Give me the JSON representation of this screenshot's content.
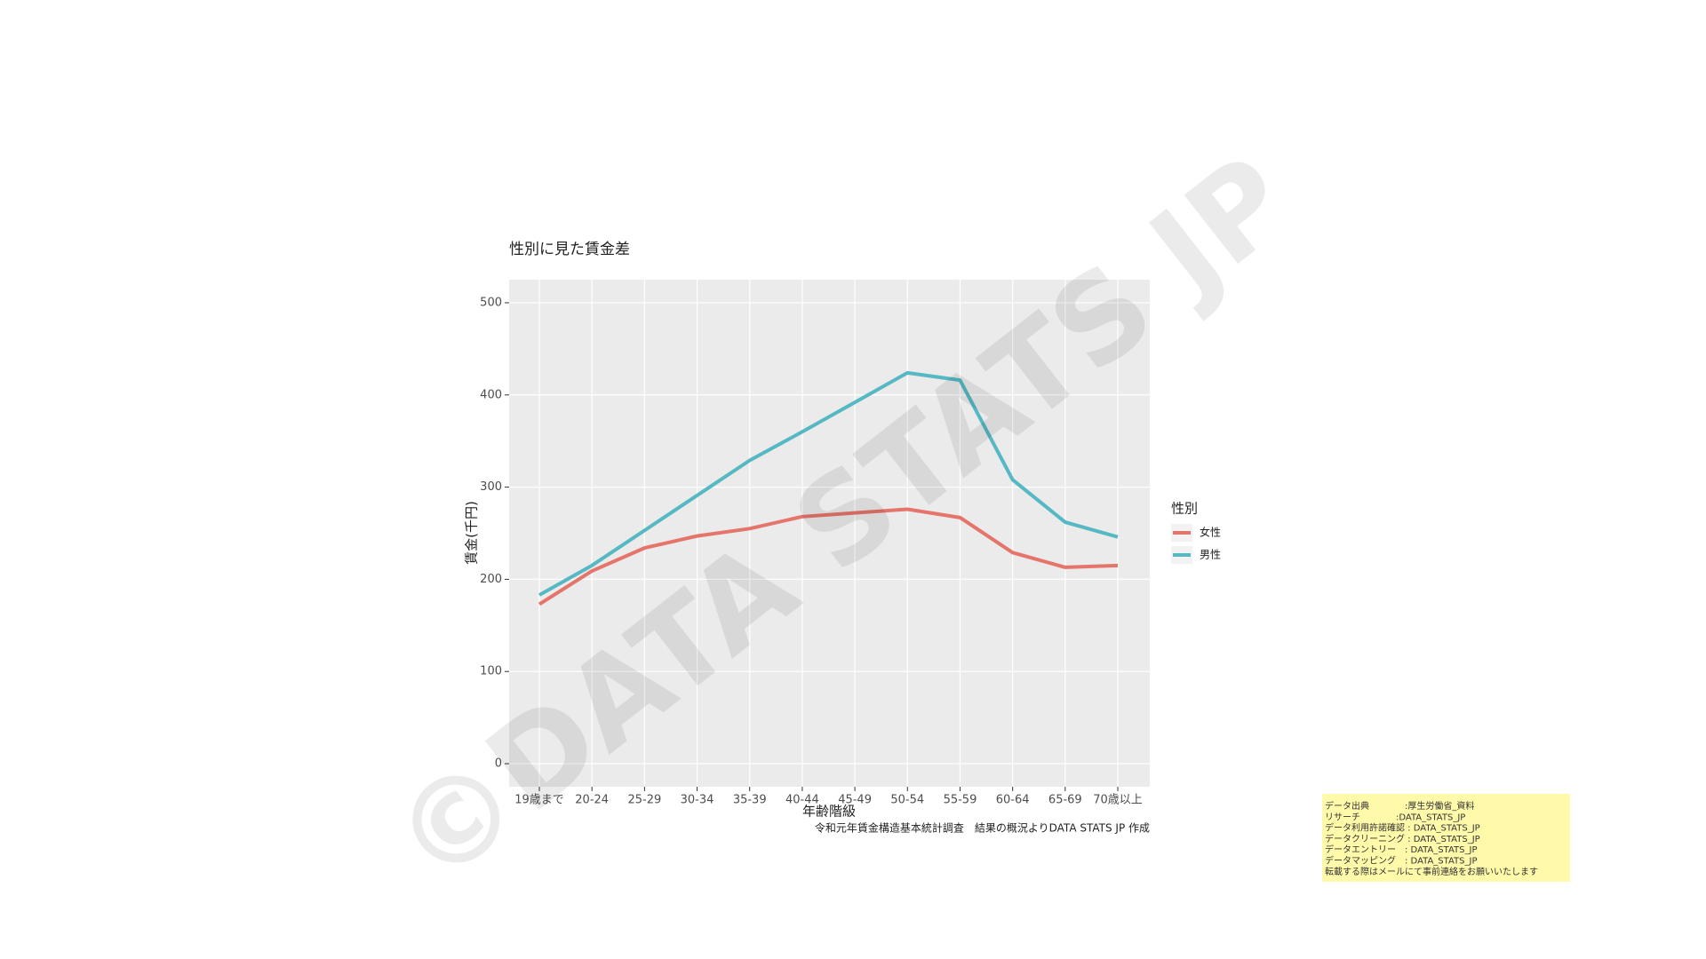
{
  "chart_data": {
    "type": "line",
    "title": "性別に見た賃金差",
    "x_label": "年齢階級",
    "y_label": "賃金(千円)",
    "caption": "令和元年賃金構造基本統計調査　結果の概況よりDATA STATS JP 作成",
    "legend_title": "性別",
    "legend_position": "right",
    "grid": true,
    "categories": [
      "19歳まで",
      "20-24",
      "25-29",
      "30-34",
      "35-39",
      "40-44",
      "45-49",
      "50-54",
      "55-59",
      "60-64",
      "65-69",
      "70歳以上"
    ],
    "series": [
      {
        "name": "女性",
        "color": "#e5746b",
        "values": [
          173,
          209,
          234,
          247,
          255,
          268,
          272,
          276,
          267,
          229,
          213,
          215
        ]
      },
      {
        "name": "男性",
        "color": "#56b8c3",
        "values": [
          183,
          215,
          253,
          291,
          329,
          360,
          392,
          424,
          416,
          308,
          262,
          246
        ]
      }
    ],
    "ylim": [
      -25,
      525
    ],
    "yticks": [
      0,
      100,
      200,
      300,
      400,
      500
    ]
  },
  "watermark": "©DATA STATS JP",
  "note": [
    "データ出典　　　　:厚生労働省_資料",
    "リサーチ　　　　:DATA_STATS_JP",
    "データ利用許諾確認 : DATA_STATS_JP",
    "データクリーニング : DATA_STATS_JP",
    "データエントリー　: DATA_STATS_JP",
    "データマッピング　: DATA_STATS_JP",
    "転載する際はメールにて事前連絡をお願いいたします"
  ]
}
